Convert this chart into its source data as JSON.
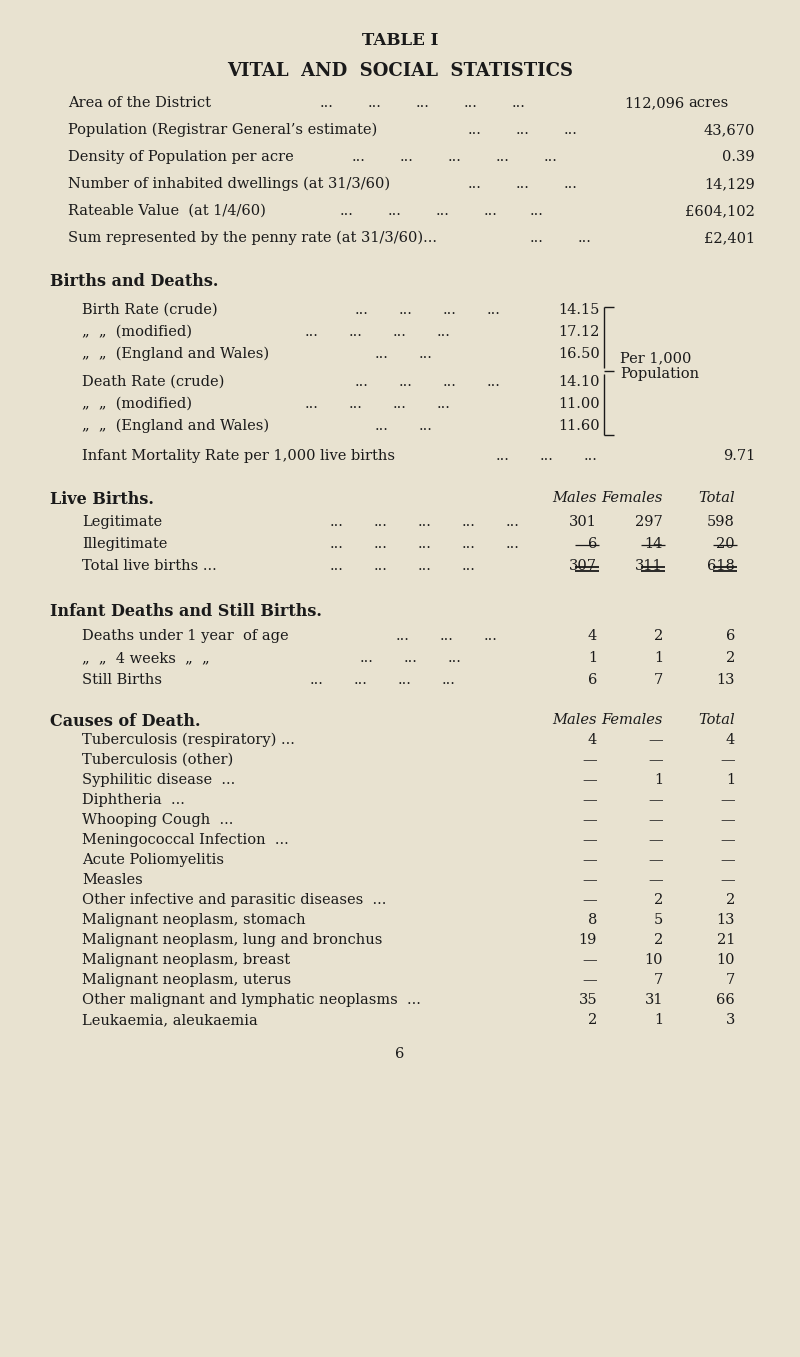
{
  "bg_color": "#e8e2d0",
  "text_color": "#1a1a1a",
  "title1": "TABLE I",
  "title2": "VITAL  AND  SOCIAL  STATISTICS",
  "page_number": "6"
}
